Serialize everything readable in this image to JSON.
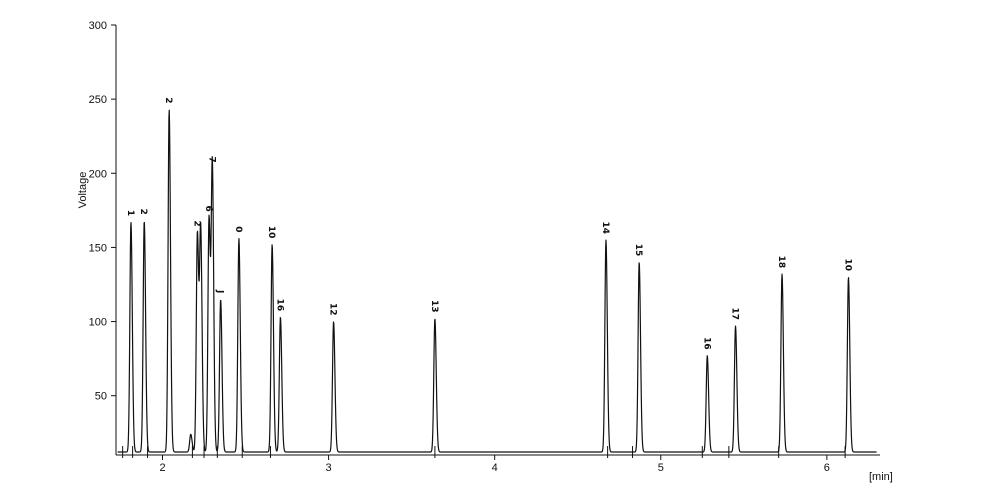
{
  "chart_data": {
    "type": "line",
    "title": "",
    "ylabel": "Voltage",
    "xunit_label": "[min]",
    "xlim": [
      1.72,
      6.32
    ],
    "ylim": [
      10,
      300
    ],
    "baseline": 12,
    "x_ticks": [
      2,
      3,
      4,
      5,
      6
    ],
    "x_tick_labels": [
      "2",
      "3",
      "4",
      "5",
      "6"
    ],
    "y_ticks": [
      50,
      100,
      150,
      200,
      250,
      300
    ],
    "y_tick_labels": [
      "50",
      "100",
      "150",
      "200",
      "250",
      "300"
    ],
    "grid": false,
    "peaks": [
      {
        "label": "1",
        "x": 1.81,
        "y": 167
      },
      {
        "label": "2",
        "x": 1.89,
        "y": 168
      },
      {
        "label": "2",
        "x": 2.04,
        "y": 243
      },
      {
        "label": "",
        "x": 2.17,
        "y": 24
      },
      {
        "label": "2",
        "x": 2.21,
        "y": 160
      },
      {
        "label": "",
        "x": 2.23,
        "y": 160
      },
      {
        "label": "6",
        "x": 2.28,
        "y": 170
      },
      {
        "label": "7",
        "x": 2.3,
        "y": 203
      },
      {
        "label": "J",
        "x": 2.35,
        "y": 115
      },
      {
        "label": "0",
        "x": 2.46,
        "y": 156
      },
      {
        "label": "10",
        "x": 2.66,
        "y": 152
      },
      {
        "label": "16",
        "x": 2.71,
        "y": 103
      },
      {
        "label": "12",
        "x": 3.03,
        "y": 100
      },
      {
        "label": "13",
        "x": 3.64,
        "y": 102
      },
      {
        "label": "14",
        "x": 4.67,
        "y": 155
      },
      {
        "label": "15",
        "x": 4.87,
        "y": 140
      },
      {
        "label": "16",
        "x": 5.28,
        "y": 77
      },
      {
        "label": "17",
        "x": 5.45,
        "y": 97
      },
      {
        "label": "18",
        "x": 5.73,
        "y": 132
      },
      {
        "label": "10",
        "x": 6.13,
        "y": 130
      }
    ],
    "event_markers": [
      1.76,
      1.82,
      1.91,
      2.18,
      2.25,
      2.33,
      2.48,
      2.65,
      3.64,
      4.68,
      4.83,
      5.25,
      5.41,
      5.71,
      6.11
    ]
  }
}
